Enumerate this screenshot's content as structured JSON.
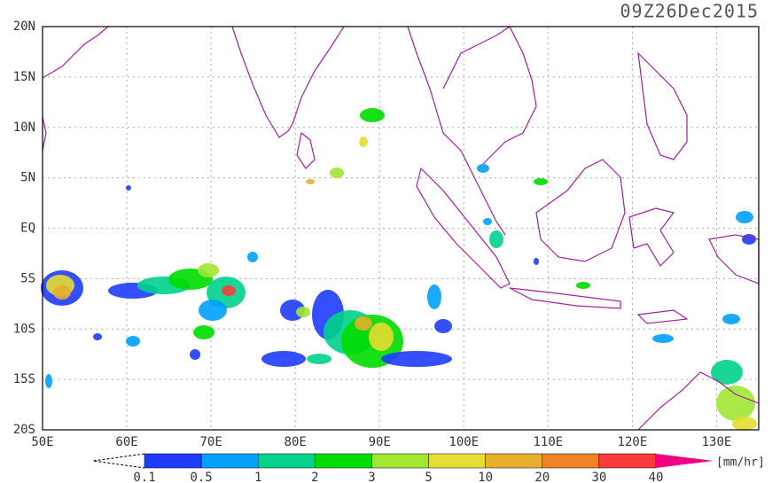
{
  "map": {
    "title": "09Z26Dec2015",
    "lon_range": [
      50,
      135
    ],
    "lat_range": [
      -20,
      20
    ],
    "lon_ticks": [
      {
        "value": 50,
        "label": "50E"
      },
      {
        "value": 60,
        "label": "60E"
      },
      {
        "value": 70,
        "label": "70E"
      },
      {
        "value": 80,
        "label": "80E"
      },
      {
        "value": 90,
        "label": "90E"
      },
      {
        "value": 100,
        "label": "100E"
      },
      {
        "value": 110,
        "label": "110E"
      },
      {
        "value": 120,
        "label": "120E"
      },
      {
        "value": 130,
        "label": "130E"
      }
    ],
    "lat_ticks": [
      {
        "value": 20,
        "label": "20N"
      },
      {
        "value": 15,
        "label": "15N"
      },
      {
        "value": 10,
        "label": "10N"
      },
      {
        "value": 5,
        "label": "5N"
      },
      {
        "value": 0,
        "label": "EQ"
      },
      {
        "value": -5,
        "label": "5S"
      },
      {
        "value": -10,
        "label": "10S"
      },
      {
        "value": -15,
        "label": "15S"
      },
      {
        "value": -20,
        "label": "20S"
      }
    ],
    "grid": true,
    "colorbar": {
      "levels": [
        0.1,
        0.5,
        1,
        2,
        3,
        5,
        10,
        20,
        30,
        40
      ],
      "colors": [
        "#1e3cff",
        "#00a0ff",
        "#00d28c",
        "#00dc00",
        "#a0e632",
        "#e6dc32",
        "#e6af2d",
        "#f08228",
        "#fa3c3c",
        "#f00082"
      ],
      "unit": "[mm/hr]"
    }
  }
}
